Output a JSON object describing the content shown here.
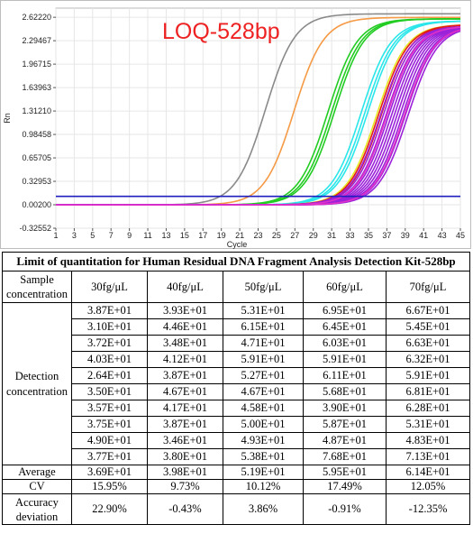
{
  "chart_data": {
    "type": "line",
    "title": "LOQ-528bp",
    "xlabel": "Cycle",
    "ylabel": "Rn",
    "xlim": [
      1,
      45
    ],
    "ylim": [
      -0.32552,
      2.75
    ],
    "x_ticks": [
      "1",
      "3",
      "5",
      "7",
      "9",
      "11",
      "13",
      "15",
      "17",
      "19",
      "21",
      "23",
      "25",
      "27",
      "29",
      "31",
      "33",
      "35",
      "37",
      "39",
      "41",
      "43",
      "45"
    ],
    "y_ticks": [
      {
        "v": 2.6222,
        "label": "2.62220"
      },
      {
        "v": 2.29467,
        "label": "2.29467"
      },
      {
        "v": 1.96715,
        "label": "1.96715"
      },
      {
        "v": 1.63963,
        "label": "1.63963"
      },
      {
        "v": 1.3121,
        "label": "1.31210"
      },
      {
        "v": 0.98458,
        "label": "0.98458"
      },
      {
        "v": 0.65705,
        "label": "0.65705"
      },
      {
        "v": 0.32953,
        "label": "0.32953"
      },
      {
        "v": 0.002,
        "label": "0.00200"
      },
      {
        "v": -0.32552,
        "label": "-0.32552"
      }
    ],
    "threshold": 0.12,
    "threshold_color": "#1f1fbf",
    "grid": true,
    "series": [
      {
        "color": "#8a8a8a",
        "midpoints": [
          23.8
        ],
        "plateau": 2.67
      },
      {
        "color": "#f59a45",
        "midpoints": [
          26.9
        ],
        "plateau": 2.62
      },
      {
        "color": "#22cc22",
        "midpoints": [
          30.6,
          31.0,
          31.3
        ],
        "plateau": 2.6
      },
      {
        "color": "#2ae6ea",
        "midpoints": [
          34.2,
          34.6,
          34.9
        ],
        "plateau": 2.57
      },
      {
        "color": "#e8e822",
        "midpoints": [
          35.9
        ],
        "plateau": 2.52
      },
      {
        "color": "#e21a1a",
        "midpoints": [
          36.1,
          36.4
        ],
        "plateau": 2.52
      },
      {
        "color": "#9b22d9",
        "midpoints": [
          36.3,
          36.6,
          36.9,
          37.2,
          37.5,
          37.8,
          38.1,
          38.4,
          38.7,
          39.0,
          39.3
        ],
        "plateau": 2.5
      },
      {
        "color": "#e030c8",
        "midpoints": [
          37.0,
          38.9
        ],
        "plateau": 2.5
      }
    ]
  },
  "table": {
    "title": "Limit of quantitation for Human Residual DNA Fragment Analysis Detection Kit-528bp",
    "row_label_header": "Sample concentration",
    "columns": [
      "30fg/μL",
      "40fg/μL",
      "50fg/μL",
      "60fg/μL",
      "70fg/μL"
    ],
    "detection_label": "Detection concentration",
    "rows": [
      [
        "3.87E+01",
        "3.93E+01",
        "5.31E+01",
        "6.95E+01",
        "6.67E+01"
      ],
      [
        "3.10E+01",
        "4.46E+01",
        "6.15E+01",
        "6.45E+01",
        "5.45E+01"
      ],
      [
        "3.72E+01",
        "3.48E+01",
        "4.71E+01",
        "6.03E+01",
        "6.63E+01"
      ],
      [
        "4.03E+01",
        "4.12E+01",
        "5.91E+01",
        "5.91E+01",
        "6.32E+01"
      ],
      [
        "2.64E+01",
        "3.87E+01",
        "5.27E+01",
        "6.11E+01",
        "5.91E+01"
      ],
      [
        "3.50E+01",
        "4.67E+01",
        "4.67E+01",
        "5.68E+01",
        "6.81E+01"
      ],
      [
        "3.57E+01",
        "4.17E+01",
        "4.58E+01",
        "3.90E+01",
        "6.28E+01"
      ],
      [
        "3.75E+01",
        "3.87E+01",
        "5.00E+01",
        "5.87E+01",
        "5.31E+01"
      ],
      [
        "4.90E+01",
        "3.46E+01",
        "4.93E+01",
        "4.87E+01",
        "4.83E+01"
      ],
      [
        "3.77E+01",
        "3.80E+01",
        "5.38E+01",
        "7.68E+01",
        "7.13E+01"
      ]
    ],
    "average_label": "Average",
    "average": [
      "3.69E+01",
      "3.98E+01",
      "5.19E+01",
      "5.95E+01",
      "6.14E+01"
    ],
    "cv_label": "CV",
    "cv": [
      "15.95%",
      "9.73%",
      "10.12%",
      "17.49%",
      "12.05%"
    ],
    "accuracy_label": "Accuracy deviation",
    "accuracy": [
      "22.90%",
      "-0.43%",
      "3.86%",
      "-0.91%",
      "-12.35%"
    ]
  }
}
